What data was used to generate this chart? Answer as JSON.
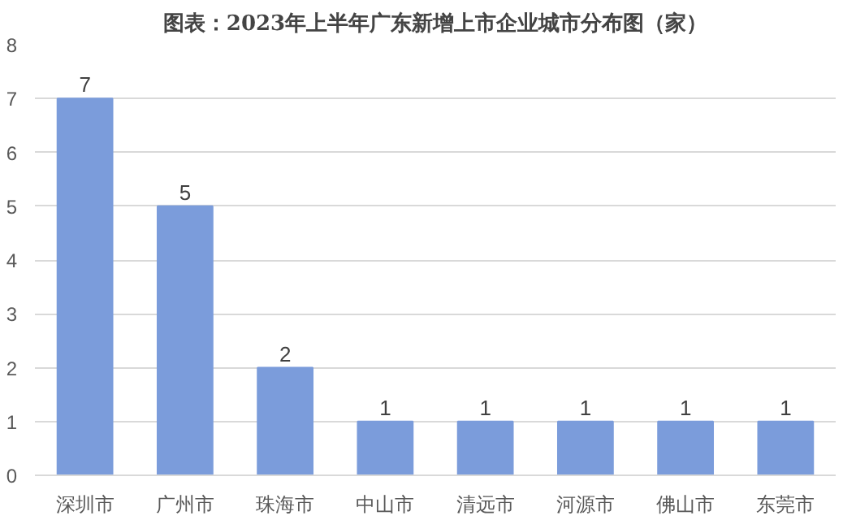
{
  "chart_data": {
    "type": "bar",
    "title": "图表：2023年上半年广东新增上市企业城市分布图（家）",
    "categories": [
      "深圳市",
      "广州市",
      "珠海市",
      "中山市",
      "清远市",
      "河源市",
      "佛山市",
      "东莞市"
    ],
    "values": [
      7,
      5,
      2,
      1,
      1,
      1,
      1,
      1
    ],
    "color": "#7b9cdb",
    "ylim": [
      0,
      8
    ],
    "yticks": [
      0,
      1,
      2,
      3,
      4,
      5,
      6,
      7,
      8
    ],
    "grid": "y",
    "data_labels": true
  }
}
